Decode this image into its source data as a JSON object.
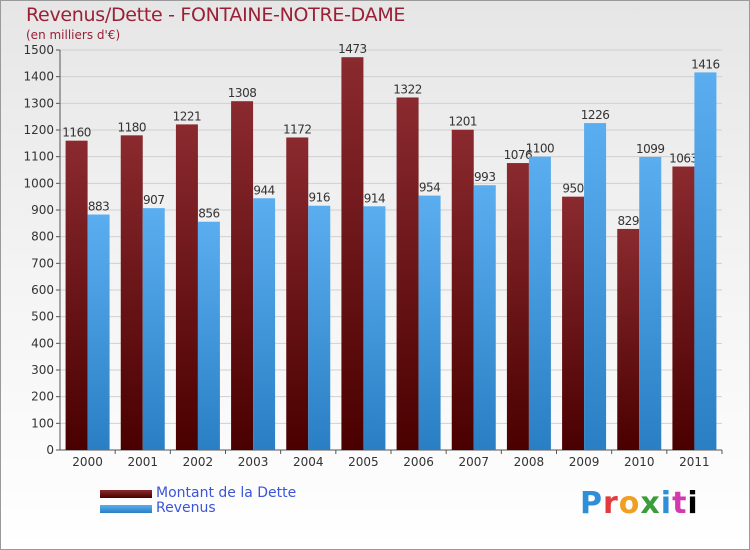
{
  "chart_data": {
    "type": "bar",
    "title": "Revenus/Dette - FONTAINE-NOTRE-DAME",
    "subtitle": "(en milliers d'€)",
    "categories": [
      "2000",
      "2001",
      "2002",
      "2003",
      "2004",
      "2005",
      "2006",
      "2007",
      "2008",
      "2009",
      "2010",
      "2011"
    ],
    "series": [
      {
        "name": "Montant de la Dette",
        "color": "#6e0f12",
        "values": [
          1160,
          1180,
          1221,
          1308,
          1172,
          1473,
          1322,
          1201,
          1076,
          950,
          829,
          1063
        ]
      },
      {
        "name": "Revenus",
        "color": "#3d97dc",
        "values": [
          883,
          907,
          856,
          944,
          916,
          914,
          954,
          993,
          1100,
          1226,
          1099,
          1416
        ]
      }
    ],
    "ylim": [
      0,
      1500
    ],
    "yticks": [
      0,
      100,
      200,
      300,
      400,
      500,
      600,
      700,
      800,
      900,
      1000,
      1100,
      1200,
      1300,
      1400,
      1500
    ],
    "grid": true,
    "legend": "bottom-left"
  },
  "logo": {
    "letters": [
      "P",
      "r",
      "o",
      "x",
      "i",
      "t",
      "i"
    ]
  }
}
